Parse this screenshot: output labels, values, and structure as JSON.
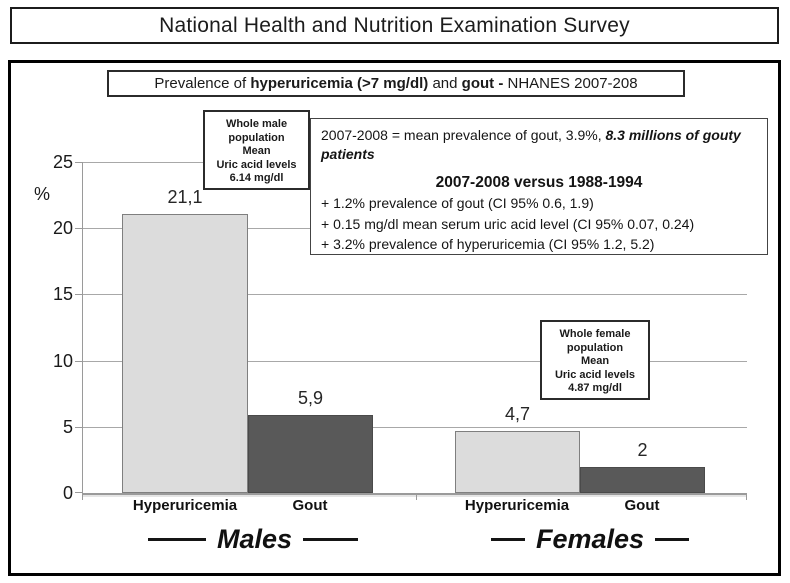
{
  "header": {
    "title": "National Health and Nutrition Examination Survey"
  },
  "subtitle": {
    "part1": "Prevalence of ",
    "part2_bold": "hyperuricemia (>7 mg/dl)",
    "part3": " and ",
    "part4_bold": "gout - ",
    "part5": "NHANES 2007-208"
  },
  "male_info_box": {
    "text": "Whole male\npopulation\nMean\nUric acid levels\n6.14 mg/dl"
  },
  "female_info_box": {
    "text": "Whole female\npopulation\nMean\nUric acid levels\n4.87 mg/dl"
  },
  "stats_box": {
    "line1_plain": "2007-2008 = mean prevalence of gout, 3.9%, ",
    "line1_emph": "8.3 millions of gouty patients",
    "heading": "2007-2008 versus 1988-1994",
    "bullet1": "+ 1.2% prevalence of gout (CI 95% 0.6, 1.9)",
    "bullet2": "+ 0.15 mg/dl mean serum uric acid level (CI 95% 0.07, 0.24)",
    "bullet3": "+ 3.2% prevalence of hyperuricemia (CI 95% 1.2, 5.2)"
  },
  "y_axis": {
    "label": "%",
    "ticks": [
      "25",
      "20",
      "15",
      "10",
      "5",
      "0"
    ]
  },
  "chart_data": {
    "type": "bar",
    "title": "Prevalence of hyperuricemia (>7 mg/dl) and gout - NHANES 2007-208",
    "xlabel": "",
    "ylabel": "%",
    "ylim": [
      0,
      25
    ],
    "yticks": [
      0,
      5,
      10,
      15,
      20,
      25
    ],
    "grid": true,
    "legend": "none",
    "groups": [
      {
        "name": "Males",
        "categories": [
          "Hyperuricemia",
          "Gout"
        ],
        "values": [
          21.1,
          5.9
        ],
        "value_labels": [
          "21,1",
          "5,9"
        ]
      },
      {
        "name": "Females",
        "categories": [
          "Hyperuricemia",
          "Gout"
        ],
        "values": [
          4.7,
          2
        ],
        "value_labels": [
          "4,7",
          "2"
        ]
      }
    ],
    "colors": {
      "hyperuricemia_bar": "#dcdcdc",
      "gout_bar": "#595959",
      "axis": "#9a9a9a"
    }
  }
}
